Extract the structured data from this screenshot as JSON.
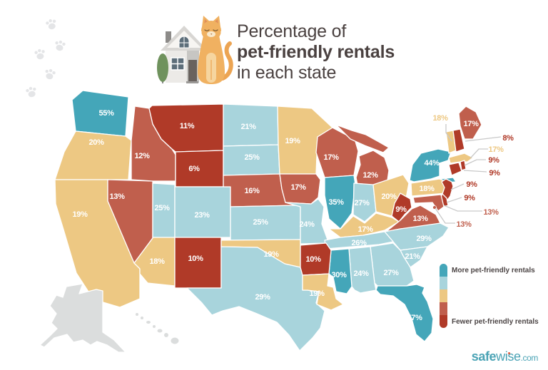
{
  "title": {
    "line1": "Percentage of",
    "line2": "pet-friendly rentals",
    "line3": "in each state"
  },
  "legend": {
    "more": "More pet-friendly rentals",
    "fewer": "Fewer pet-friendly rentals",
    "colors": [
      "#44a6b9",
      "#a8d4dc",
      "#edc883",
      "#c05f4d",
      "#b03a28"
    ]
  },
  "logo": {
    "bold": "safe",
    "regular": "wise",
    "suffix": ".com"
  },
  "palette": {
    "highest": "#44a6b9",
    "high": "#a8d4dc",
    "mid": "#edc883",
    "low": "#c05f4d",
    "lowest": "#b03a28",
    "nodata": "#dbdddd"
  },
  "chart_data": {
    "type": "choropleth",
    "title": "Percentage of pet-friendly rentals in each state",
    "unit": "percent",
    "legend_top": "More pet-friendly rentals",
    "legend_bottom": "Fewer pet-friendly rentals",
    "category_meaning": {
      "highest": "most pet-friendly (teal)",
      "high": "light blue",
      "mid": "tan",
      "low": "medium red",
      "lowest": "fewest pet-friendly (dark red)",
      "nodata": "gray, no value shown"
    },
    "states": [
      {
        "id": "WA",
        "name": "Washington",
        "value": "55%",
        "category": "highest"
      },
      {
        "id": "OR",
        "name": "Oregon",
        "value": "20%",
        "category": "mid"
      },
      {
        "id": "CA",
        "name": "California",
        "value": "19%",
        "category": "mid"
      },
      {
        "id": "NV",
        "name": "Nevada",
        "value": "13%",
        "category": "low"
      },
      {
        "id": "ID",
        "name": "Idaho",
        "value": "12%",
        "category": "low"
      },
      {
        "id": "MT",
        "name": "Montana",
        "value": "11%",
        "category": "lowest"
      },
      {
        "id": "WY",
        "name": "Wyoming",
        "value": "6%",
        "category": "lowest"
      },
      {
        "id": "UT",
        "name": "Utah",
        "value": "25%",
        "category": "high"
      },
      {
        "id": "CO",
        "name": "Colorado",
        "value": "23%",
        "category": "high"
      },
      {
        "id": "AZ",
        "name": "Arizona",
        "value": "18%",
        "category": "mid"
      },
      {
        "id": "NM",
        "name": "New Mexico",
        "value": "10%",
        "category": "lowest"
      },
      {
        "id": "ND",
        "name": "North Dakota",
        "value": "21%",
        "category": "high"
      },
      {
        "id": "SD",
        "name": "South Dakota",
        "value": "25%",
        "category": "high"
      },
      {
        "id": "NE",
        "name": "Nebraska",
        "value": "16%",
        "category": "low"
      },
      {
        "id": "KS",
        "name": "Kansas",
        "value": "25%",
        "category": "high"
      },
      {
        "id": "OK",
        "name": "Oklahoma",
        "value": "19%",
        "category": "mid"
      },
      {
        "id": "TX",
        "name": "Texas",
        "value": "29%",
        "category": "high"
      },
      {
        "id": "MN",
        "name": "Minnesota",
        "value": "19%",
        "category": "mid"
      },
      {
        "id": "IA",
        "name": "Iowa",
        "value": "17%",
        "category": "low"
      },
      {
        "id": "MO",
        "name": "Missouri",
        "value": "24%",
        "category": "high"
      },
      {
        "id": "WI",
        "name": "Wisconsin",
        "value": "17%",
        "category": "low"
      },
      {
        "id": "IL",
        "name": "Illinois",
        "value": "35%",
        "category": "highest"
      },
      {
        "id": "MI",
        "name": "Michigan",
        "value": "12%",
        "category": "low"
      },
      {
        "id": "IN",
        "name": "Indiana",
        "value": "27%",
        "category": "high"
      },
      {
        "id": "OH",
        "name": "Ohio",
        "value": "20%",
        "category": "mid"
      },
      {
        "id": "KY",
        "name": "Kentucky",
        "value": "17%",
        "category": "mid"
      },
      {
        "id": "TN",
        "name": "Tennessee",
        "value": "26%",
        "category": "high"
      },
      {
        "id": "AR",
        "name": "Arkansas",
        "value": "10%",
        "category": "lowest"
      },
      {
        "id": "LA",
        "name": "Louisiana",
        "value": "19%",
        "category": "mid"
      },
      {
        "id": "MS",
        "name": "Mississippi",
        "value": "30%",
        "category": "highest"
      },
      {
        "id": "AL",
        "name": "Alabama",
        "value": "24%",
        "category": "high"
      },
      {
        "id": "GA",
        "name": "Georgia",
        "value": "27%",
        "category": "high"
      },
      {
        "id": "FL",
        "name": "Florida",
        "value": "57%",
        "category": "highest"
      },
      {
        "id": "SC",
        "name": "South Carolina",
        "value": "21%",
        "category": "high"
      },
      {
        "id": "NC",
        "name": "North Carolina",
        "value": "29%",
        "category": "high"
      },
      {
        "id": "VA",
        "name": "Virginia",
        "value": "13%",
        "category": "low"
      },
      {
        "id": "WV",
        "name": "West Virginia",
        "value": "9%",
        "category": "lowest"
      },
      {
        "id": "NY",
        "name": "New York",
        "value": "44%",
        "category": "highest"
      },
      {
        "id": "PA",
        "name": "Pennsylvania",
        "value": "18%",
        "category": "mid"
      },
      {
        "id": "NJ",
        "name": "New Jersey",
        "value": "9%",
        "category": "lowest"
      },
      {
        "id": "DE",
        "name": "Delaware",
        "value": "9%",
        "category": "lowest"
      },
      {
        "id": "MD",
        "name": "Maryland",
        "value": "13%",
        "category": "low"
      },
      {
        "id": "DC",
        "name": "Washington DC",
        "value": "13%",
        "category": "low"
      },
      {
        "id": "CT",
        "name": "Connecticut",
        "value": "9%",
        "category": "lowest"
      },
      {
        "id": "RI",
        "name": "Rhode Island",
        "value": "9%",
        "category": "lowest"
      },
      {
        "id": "MA",
        "name": "Massachusetts",
        "value": "17%",
        "category": "mid"
      },
      {
        "id": "VT",
        "name": "Vermont",
        "value": "18%",
        "category": "mid"
      },
      {
        "id": "NH",
        "name": "New Hampshire",
        "value": "8%",
        "category": "lowest"
      },
      {
        "id": "ME",
        "name": "Maine",
        "value": "17%",
        "category": "low"
      },
      {
        "id": "AK",
        "name": "Alaska",
        "category": "nodata"
      },
      {
        "id": "HI",
        "name": "Hawaii",
        "category": "nodata"
      }
    ]
  }
}
